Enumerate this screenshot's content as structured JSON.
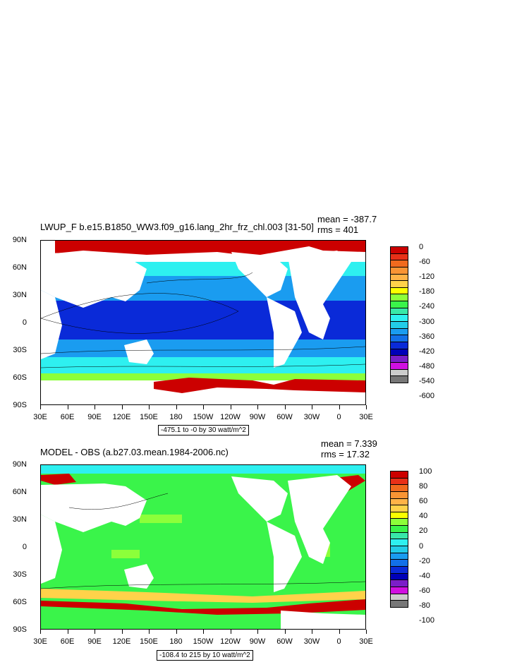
{
  "panels": [
    {
      "title": "LWUP_F b.e15.B1850_WW3.f09_g16.lang_2hr_frz_chl.003 [31-50]",
      "mean": "mean = -387.7",
      "rms": "rms = 401",
      "range_label": "-475.1 to -0 by 30 watt/m^2",
      "colorbar_labels": [
        "0",
        "-60",
        "-120",
        "-180",
        "-240",
        "-300",
        "-360",
        "-420",
        "-480",
        "-540",
        "-600"
      ],
      "colorbar_colors": [
        "#cc0000",
        "#e83018",
        "#f06a1e",
        "#f99434",
        "#ffb347",
        "#ffd24a",
        "#fbff00",
        "#8cff3a",
        "#3af44a",
        "#38e8a8",
        "#2ef0f0",
        "#22cce8",
        "#1a9cf0",
        "#1270e8",
        "#0a2ad8",
        "#0000b8",
        "#7b1ec8",
        "#d010e0",
        "#cccccc",
        "#777777"
      ],
      "chart_data": {
        "type": "heatmap",
        "title": "LWUP_F b.e15.B1850_WW3.f09_g16.lang_2hr_frz_chl.003 [31-50]",
        "xticks": [
          "30E",
          "60E",
          "90E",
          "120E",
          "150E",
          "180",
          "150W",
          "120W",
          "90W",
          "60W",
          "30W",
          "0",
          "30E"
        ],
        "yticks": [
          "90N",
          "60N",
          "30N",
          "0",
          "30S",
          "60S",
          "90S"
        ],
        "contour_levels": [
          0,
          -60,
          -120,
          -180,
          -240,
          -300,
          -360,
          -420,
          -480,
          -540,
          -600
        ],
        "mean": -387.7,
        "rms": 401,
        "min": -475.1,
        "max": 0,
        "interval": 30,
        "units": "watt/m^2"
      }
    },
    {
      "title": "MODEL - OBS (a.b27.03.mean.1984-2006.nc)",
      "mean": "mean = 7.339",
      "rms": "rms = 17.32",
      "range_label": "-108.4 to 215 by 10 watt/m^2",
      "colorbar_labels": [
        "100",
        "80",
        "60",
        "40",
        "20",
        "0",
        "-20",
        "-40",
        "-60",
        "-80",
        "-100"
      ],
      "colorbar_colors": [
        "#cc0000",
        "#e83018",
        "#f06a1e",
        "#f99434",
        "#ffb347",
        "#ffd24a",
        "#fbff00",
        "#8cff3a",
        "#3af44a",
        "#38e8a8",
        "#2ef0f0",
        "#22cce8",
        "#1a9cf0",
        "#1270e8",
        "#0a2ad8",
        "#0000b8",
        "#7b1ec8",
        "#d010e0",
        "#cccccc",
        "#777777"
      ],
      "chart_data": {
        "type": "heatmap",
        "title": "MODEL - OBS (a.b27.03.mean.1984-2006.nc)",
        "xticks": [
          "30E",
          "60E",
          "90E",
          "120E",
          "150E",
          "180",
          "150W",
          "120W",
          "90W",
          "60W",
          "30W",
          "0",
          "30E"
        ],
        "yticks": [
          "90N",
          "60N",
          "30N",
          "0",
          "30S",
          "60S",
          "90S"
        ],
        "contour_levels": [
          100,
          80,
          60,
          40,
          20,
          0,
          -20,
          -40,
          -60,
          -80,
          -100
        ],
        "mean": 7.339,
        "rms": 17.32,
        "min": -108.4,
        "max": 215,
        "interval": 10,
        "units": "watt/m^2"
      }
    }
  ]
}
